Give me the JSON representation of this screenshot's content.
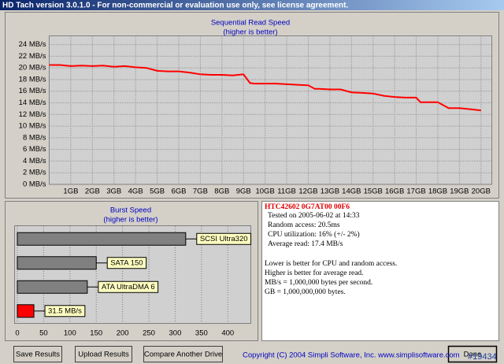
{
  "window": {
    "title": "HD Tach version 3.0.1.0 - For non-commercial or evaluation use only, see license agreement.",
    "watermark": "#19434"
  },
  "chart_data": [
    {
      "type": "line",
      "title": "Sequential Read Speed",
      "subtitle": "(higher is better)",
      "x": [
        0,
        0.5,
        1,
        1.5,
        2,
        2.5,
        3,
        3.5,
        4,
        4.5,
        5,
        5.5,
        6,
        6.5,
        7,
        7.5,
        8,
        8.5,
        9,
        9.3,
        9.5,
        10,
        10.5,
        11,
        11.5,
        12,
        12.3,
        12.5,
        13,
        13.5,
        14,
        14.5,
        15,
        15.5,
        16,
        16.5,
        17,
        17.2,
        17.5,
        18,
        18.5,
        19,
        19.5,
        20
      ],
      "series": [
        {
          "color": "#ff0000",
          "values": [
            20.5,
            20.5,
            20.3,
            20.4,
            20.3,
            20.4,
            20.2,
            20.3,
            20.1,
            20.0,
            19.5,
            19.4,
            19.4,
            19.2,
            18.9,
            18.8,
            18.8,
            18.7,
            18.9,
            17.4,
            17.3,
            17.3,
            17.3,
            17.2,
            17.1,
            17.0,
            16.4,
            16.4,
            16.3,
            16.3,
            15.8,
            15.7,
            15.6,
            15.2,
            15.0,
            14.9,
            14.9,
            14.1,
            14.1,
            14.1,
            13.1,
            13.1,
            12.9,
            12.7
          ]
        }
      ],
      "xlim": [
        0,
        20.5
      ],
      "ylim": [
        0,
        25.5
      ],
      "xticks": [
        {
          "value": 1,
          "label": "1GB"
        },
        {
          "value": 2,
          "label": "2GB"
        },
        {
          "value": 3,
          "label": "3GB"
        },
        {
          "value": 4,
          "label": "4GB"
        },
        {
          "value": 5,
          "label": "5GB"
        },
        {
          "value": 6,
          "label": "6GB"
        },
        {
          "value": 7,
          "label": "7GB"
        },
        {
          "value": 8,
          "label": "8GB"
        },
        {
          "value": 9,
          "label": "9GB"
        },
        {
          "value": 10,
          "label": "10GB"
        },
        {
          "value": 11,
          "label": "11GB"
        },
        {
          "value": 12,
          "label": "12GB"
        },
        {
          "value": 13,
          "label": "13GB"
        },
        {
          "value": 14,
          "label": "14GB"
        },
        {
          "value": 15,
          "label": "15GB"
        },
        {
          "value": 16,
          "label": "16GB"
        },
        {
          "value": 17,
          "label": "17GB"
        },
        {
          "value": 18,
          "label": "18GB"
        },
        {
          "value": 19,
          "label": "19GB"
        },
        {
          "value": 20,
          "label": "20GB"
        }
      ],
      "yticks": [
        {
          "value": 0,
          "label": "0 MB/s"
        },
        {
          "value": 2,
          "label": "2 MB/s"
        },
        {
          "value": 4,
          "label": "4 MB/s"
        },
        {
          "value": 6,
          "label": "6 MB/s"
        },
        {
          "value": 8,
          "label": "8 MB/s"
        },
        {
          "value": 10,
          "label": "10 MB/s"
        },
        {
          "value": 12,
          "label": "12 MB/s"
        },
        {
          "value": 14,
          "label": "14 MB/s"
        },
        {
          "value": 16,
          "label": "16 MB/s"
        },
        {
          "value": 18,
          "label": "18 MB/s"
        },
        {
          "value": 20,
          "label": "20 MB/s"
        },
        {
          "value": 22,
          "label": "22 MB/s"
        },
        {
          "value": 24,
          "label": "24 MB/s"
        }
      ],
      "grid": true
    },
    {
      "type": "hbar",
      "title": "Burst Speed",
      "subtitle": "(higher is better)",
      "categories": [
        "SCSI Ultra320",
        "SATA 150",
        "ATA UltraDMA 6",
        null
      ],
      "values": [
        320,
        150,
        133,
        31.5
      ],
      "value_labels": [
        null,
        null,
        null,
        "31.5 MB/s"
      ],
      "colors": [
        "#808080",
        "#808080",
        "#808080",
        "#ff0000"
      ],
      "xlim": [
        0,
        443
      ],
      "xticks": [
        0,
        50,
        100,
        150,
        200,
        250,
        300,
        350,
        400
      ],
      "grid": true
    }
  ],
  "info": {
    "drive": "HTC42602 0G7AT00 00F6",
    "details": [
      "Tested on 2005-06-02 at 14:33",
      "Random access: 20.5ms",
      "CPU utilization: 16% (+/- 2%)",
      "Average read: 17.4 MB/s"
    ],
    "notes": [
      "Lower is better for CPU and random access.",
      "Higher is better for average read.",
      "MB/s = 1,000,000 bytes per second.",
      "GB = 1,000,000,000 bytes."
    ]
  },
  "buttons": [
    "Save Results",
    "Upload Results",
    "Compare Another Drive",
    "Done"
  ],
  "copyright": "Copyright (C) 2004 Simpli Software, Inc. www.simplisoftware.com"
}
